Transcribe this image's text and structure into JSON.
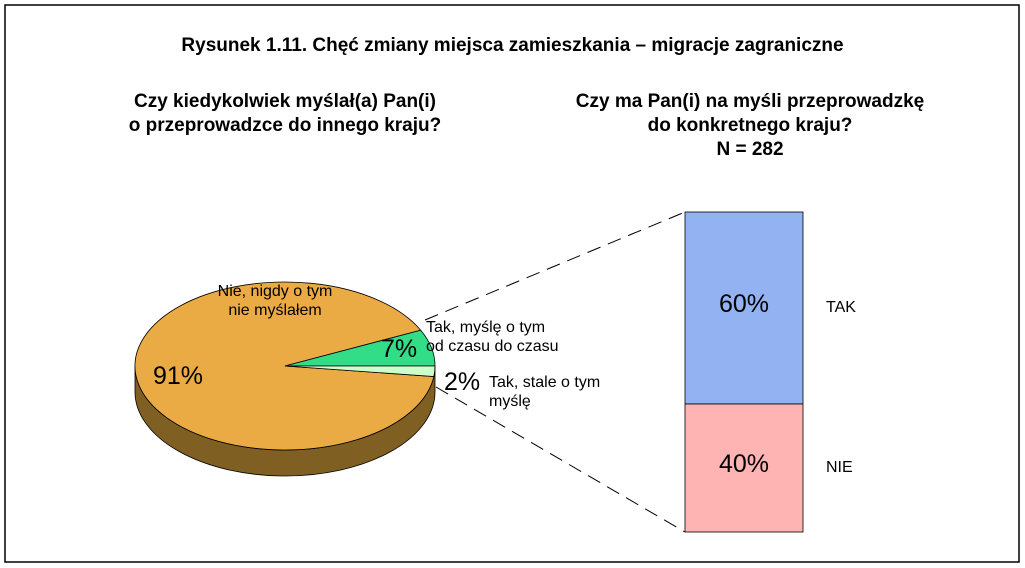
{
  "title": "Rysunek 1.11. Chęć zmiany miejsca zamieszkania – migracje zagraniczne",
  "chart_data": [
    {
      "type": "pie",
      "title": "Czy kiedykolwiek myślał(a) Pan(i)\no przeprowadzce do innego kraju?",
      "categories": [
        "Nie, nigdy o tym\nnie myślałem",
        "Tak, myślę o tym\nod czasu do czasu",
        "Tak, stale o tym\nmyślę"
      ],
      "values": [
        91,
        7,
        2
      ],
      "value_labels": [
        "91%",
        "7%",
        "2%"
      ],
      "colors": [
        "#eaaa44",
        "#33dd88",
        "#ccffcc"
      ]
    },
    {
      "type": "stacked-bar",
      "title": "Czy ma Pan(i) na myśli przeprowadzkę\ndo konkretnego kraju?",
      "subtitle": "N = 282",
      "categories": [
        "TAK",
        "NIE"
      ],
      "values": [
        60,
        40
      ],
      "value_labels": [
        "60%",
        "40%"
      ],
      "colors": [
        "#92b2f2",
        "#ffb4b4"
      ]
    }
  ]
}
